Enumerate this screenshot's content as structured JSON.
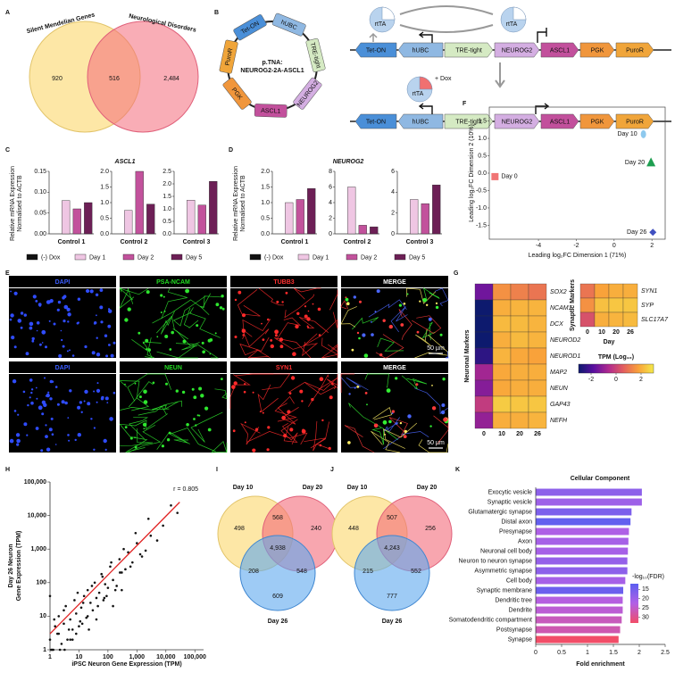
{
  "venn_a": {
    "panel": "A",
    "sets": [
      "Silent Mendelian Genes",
      "Neurological Disorders"
    ],
    "counts": [
      "920",
      "516",
      "2,484"
    ]
  },
  "construct_b": {
    "panel": "B",
    "name_lines": [
      "p.TNA:",
      "NEUROG2-2A-ASCL1"
    ],
    "elements": [
      "Tet-ON",
      "hUBC",
      "TRE-tight",
      "NEUROG2",
      "ASCL1",
      "PGK",
      "PuroR"
    ],
    "element_colors": [
      "#4a8fd8",
      "#8fb8e2",
      "#d5eac3",
      "#d4aee2",
      "#c2509c",
      "#f0963c",
      "#f0a53a"
    ],
    "activator": "rtTA",
    "inducer": "+ Dox"
  },
  "images_e": {
    "panel": "E",
    "rows": [
      [
        "DAPI",
        "PSA-NCAM",
        "TUBB3",
        "MERGE"
      ],
      [
        "DAPI",
        "NEUN",
        "SYN1",
        "MERGE"
      ]
    ],
    "label_colors": [
      "#3a5cff",
      "#22dd22",
      "#ff3030",
      "#ffffff"
    ],
    "scale_bar": "50 µm"
  },
  "venn_i": {
    "panel": "I",
    "sets": [
      "Day 10",
      "Day 20",
      "Day 26"
    ],
    "counts": [
      "498",
      "568",
      "240",
      "4,938",
      "208",
      "548",
      "609"
    ]
  },
  "venn_j": {
    "panel": "J",
    "sets": [
      "Day 10",
      "Day 20",
      "Day 26"
    ],
    "counts": [
      "448",
      "507",
      "256",
      "4,243",
      "215",
      "552",
      "777"
    ]
  },
  "chart_data": [
    {
      "type": "bar",
      "panel": "C",
      "title": "ASCL1",
      "ylabel": [
        "Relative mRNA Expression",
        "Normalised to ACTB"
      ],
      "legend": [
        "(-) Dox",
        "Day 1",
        "Day 2",
        "Day 5"
      ],
      "colors": [
        "#111111",
        "#efc6e3",
        "#c2529c",
        "#6d1f56"
      ],
      "subplots": [
        {
          "name": "Control 1",
          "ylim": [
            0,
            0.15
          ],
          "yticks": [
            {
              "value": 0,
              "label": "0.00"
            },
            0.05,
            {
              "value": 0.1,
              "label": "0.10"
            },
            0.15
          ],
          "values": [
            0,
            0.08,
            0.06,
            0.075
          ]
        },
        {
          "name": "Control 2",
          "ylim": [
            0,
            2
          ],
          "yticks": [
            {
              "value": 0,
              "label": "0.0"
            },
            0.5,
            {
              "value": 1,
              "label": "1.0"
            },
            1.5,
            {
              "value": 2,
              "label": "2.0"
            }
          ],
          "values": [
            0,
            0.75,
            2.0,
            0.95
          ]
        },
        {
          "name": "Control 3",
          "ylim": [
            0,
            2.5
          ],
          "yticks": [
            {
              "value": 0,
              "label": "0.0"
            },
            0.5,
            {
              "value": 1,
              "label": "1.0"
            },
            1.5,
            {
              "value": 2,
              "label": "2.0"
            },
            2.5
          ],
          "values": [
            0,
            1.35,
            1.15,
            2.1
          ]
        }
      ]
    },
    {
      "type": "bar",
      "panel": "D",
      "title": "NEUROG2",
      "ylabel": [
        "Relative mRNA Expression",
        "Normalised to ACTB"
      ],
      "legend": [
        "(-) Dox",
        "Day 1",
        "Day 2",
        "Day 5"
      ],
      "colors": [
        "#111111",
        "#efc6e3",
        "#c2529c",
        "#6d1f56"
      ],
      "subplots": [
        {
          "name": "Control 1",
          "ylim": [
            0,
            2
          ],
          "yticks": [
            {
              "value": 0,
              "label": "0.0"
            },
            0.5,
            {
              "value": 1,
              "label": "1.0"
            },
            1.5,
            {
              "value": 2,
              "label": "2.0"
            }
          ],
          "values": [
            0,
            1.0,
            1.1,
            1.45
          ]
        },
        {
          "name": "Control 2",
          "ylim": [
            0,
            8
          ],
          "yticks": [
            0,
            2,
            4,
            6,
            8
          ],
          "values": [
            0,
            6.0,
            1.1,
            0.9
          ]
        },
        {
          "name": "Control 3",
          "ylim": [
            0,
            6
          ],
          "yticks": [
            0,
            2,
            4,
            6
          ],
          "values": [
            0,
            3.3,
            2.9,
            4.7
          ]
        }
      ]
    },
    {
      "type": "scatter",
      "panel": "F",
      "xlabel": "Leading log₂FC Dimension 1 (71%)",
      "ylabel": "Leading log₂FC Dimension 2 (10%)",
      "xlim": [
        -6.6,
        2.7
      ],
      "ylim": [
        -1.9,
        1.9
      ],
      "xticks": [
        -4,
        -2,
        0,
        2
      ],
      "yticks": [
        -1.5,
        {
          "value": -1,
          "label": "-1.0"
        },
        -0.5,
        {
          "value": 0,
          "label": "0.0"
        },
        0.5,
        {
          "value": 1,
          "label": "1.0"
        },
        1.5
      ],
      "series": [
        {
          "name": "Day 0",
          "color": "#f07474",
          "marker": "square",
          "x": [
            -6.3
          ],
          "y": [
            -0.1
          ]
        },
        {
          "name": "Day 10",
          "color": "#8ec9ee",
          "marker": "circle",
          "x": [
            1.55
          ],
          "y": [
            1.12
          ]
        },
        {
          "name": "Day 20",
          "color": "#1e9e50",
          "marker": "triangle",
          "x": [
            1.95
          ],
          "y": [
            0.3
          ]
        },
        {
          "name": "Day 26",
          "color": "#4050c0",
          "marker": "diamond",
          "x": [
            2.05
          ],
          "y": [
            -1.7
          ]
        }
      ]
    },
    {
      "type": "heatmap",
      "panel": "G",
      "clim": [
        -3,
        3
      ],
      "colormap": [
        "#0d1a6e",
        "#5a0fa0",
        "#b02a8f",
        "#e35f5e",
        "#f9a23a",
        "#f4e94a"
      ],
      "colorbar_title": "TPM (Log₁₀)",
      "colorbar_ticks": [
        -2,
        0,
        2
      ],
      "days_label": "Day",
      "heatmaps": [
        {
          "title": "Neuronal Markers",
          "columns": [
            "0",
            "10",
            "20",
            "26"
          ],
          "rows": [
            "SOX2",
            "NCAM1",
            "DCX",
            "NEUROD2",
            "NEUROD1",
            "MAP2",
            "NEUN",
            "GAP43",
            "NEFH"
          ],
          "values": [
            [
              -1.5,
              1.5,
              1.2,
              1.0
            ],
            [
              -3,
              2.0,
              2.1,
              2.1
            ],
            [
              -3,
              2.2,
              2.2,
              2.1
            ],
            [
              -3,
              2.0,
              2.2,
              2.1
            ],
            [
              -2.5,
              2.1,
              1.9,
              1.8
            ],
            [
              -0.8,
              1.9,
              2.0,
              2.0
            ],
            [
              -1.2,
              1.9,
              2.0,
              2.0
            ],
            [
              -0.2,
              2.5,
              2.4,
              2.4
            ],
            [
              -1.0,
              2.0,
              2.0,
              2.1
            ]
          ]
        },
        {
          "title": "Synaptic Markers",
          "columns": [
            "0",
            "10",
            "20",
            "26"
          ],
          "rows": [
            "SYN1",
            "SYP",
            "SLC17A7"
          ],
          "values": [
            [
              1.0,
              1.8,
              2.0,
              2.0
            ],
            [
              1.5,
              2.3,
              2.4,
              2.4
            ],
            [
              0.3,
              2.0,
              2.1,
              2.2
            ]
          ]
        }
      ]
    },
    {
      "type": "scatter_log",
      "panel": "H",
      "xlabel": "iPSC Neuron Gene Expression (TPM)",
      "ylabel": [
        "Day 26 Neuron",
        "Gene Expression (TPM)"
      ],
      "annotation": "r = 0.805",
      "log": true,
      "xlim": [
        1,
        200000
      ],
      "ylim": [
        1,
        100000
      ],
      "xticks": [
        1,
        10,
        100,
        {
          "value": 1000,
          "label": "1,000"
        },
        {
          "value": 10000,
          "label": "10,000"
        },
        {
          "value": 100000,
          "label": "100,000"
        }
      ],
      "yticks": [
        1,
        10,
        100,
        {
          "value": 1000,
          "label": "1,000"
        },
        {
          "value": 10000,
          "label": "10,000"
        },
        {
          "value": 100000,
          "label": "100,000"
        }
      ],
      "color": "#111111",
      "fit_color": "#e02020",
      "fit": {
        "x": [
          1,
          30000
        ],
        "y": [
          3,
          25000
        ]
      },
      "x": [
        1,
        1.2,
        1.5,
        1.8,
        2,
        2.5,
        3,
        3.5,
        4,
        5,
        6,
        7,
        8,
        10,
        12,
        15,
        18,
        20,
        25,
        30,
        35,
        40,
        50,
        60,
        70,
        80,
        100,
        120,
        150,
        200,
        250,
        300,
        400,
        500,
        700,
        1000,
        1500,
        2000,
        3000,
        5000,
        8000,
        15000,
        25000,
        1.1,
        1.4,
        2.2,
        3,
        4.5,
        6,
        9,
        11,
        14,
        20,
        28,
        45,
        65,
        90,
        130,
        180,
        260,
        350,
        600,
        900,
        1300,
        2500,
        1,
        1.3,
        2,
        3.2,
        5,
        8,
        13,
        22,
        40,
        75,
        150,
        300
      ],
      "y": [
        2,
        1,
        5,
        3,
        10,
        1.5,
        6,
        20,
        2,
        8,
        4,
        30,
        12,
        5,
        18,
        40,
        9,
        60,
        25,
        15,
        100,
        35,
        50,
        180,
        30,
        90,
        70,
        300,
        120,
        80,
        500,
        200,
        250,
        800,
        400,
        1500,
        600,
        900,
        2500,
        1800,
        5000,
        20000,
        12000,
        1,
        8,
        1,
        15,
        4,
        2,
        50,
        7,
        25,
        10,
        80,
        20,
        150,
        40,
        400,
        60,
        200,
        1000,
        300,
        3000,
        700,
        8000,
        40,
        1,
        3,
        1,
        2,
        3,
        6,
        4,
        8,
        35,
        20,
        60
      ]
    },
    {
      "type": "hbar",
      "panel": "K",
      "title": "Cellular Component",
      "xlabel": "Fold enrichment",
      "xlim": [
        0,
        2.5
      ],
      "xticks": [
        0,
        0.5,
        1,
        1.5,
        2,
        2.5
      ],
      "categories": [
        "Exocytic vesicle",
        "Synaptic vesicle",
        "Glutamatergic synapse",
        "Distal axon",
        "Presynapse",
        "Axon",
        "Neuronal cell body",
        "Neuron to neuron synapse",
        "Asymmetric synapse",
        "Cell body",
        "Synaptic membrane",
        "Dendritic tree",
        "Dendrite",
        "Somatodendritic compartment",
        "Postsynapse",
        "Synapse"
      ],
      "values": [
        2.05,
        2.05,
        1.85,
        1.83,
        1.8,
        1.79,
        1.78,
        1.77,
        1.77,
        1.73,
        1.69,
        1.68,
        1.68,
        1.66,
        1.63,
        1.6
      ],
      "fdr": [
        18,
        20,
        16,
        13,
        22,
        21,
        21,
        19,
        18,
        21,
        14,
        23,
        24,
        26,
        27,
        33
      ],
      "legend_title": "-log₁₀(FDR)",
      "clim": [
        12,
        33
      ],
      "colormap": [
        "#5b5ff0",
        "#b260e6",
        "#f24d68"
      ],
      "legend_ticks": [
        15,
        20,
        25,
        30
      ]
    }
  ]
}
